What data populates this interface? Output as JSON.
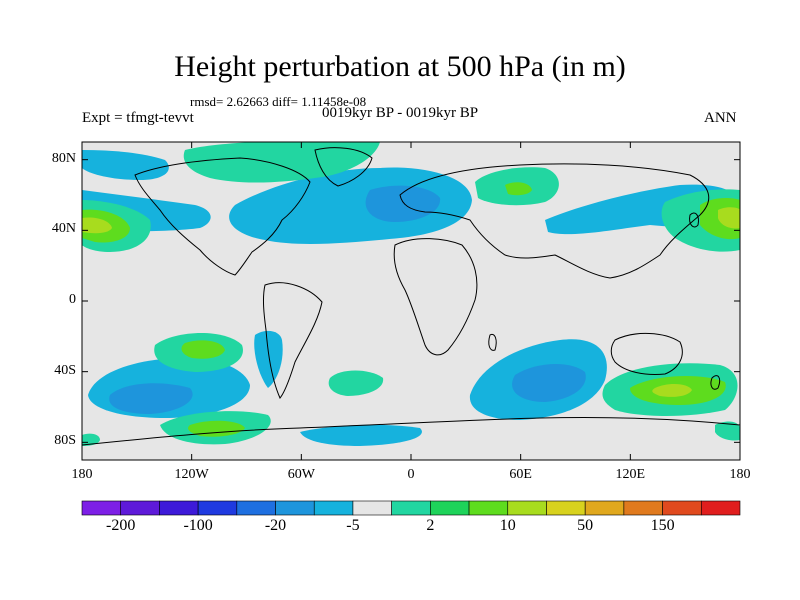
{
  "title": "Height perturbation at 500 hPa (in m)",
  "stats": "rmsd= 2.62663 diff= 1.11458e-08",
  "experiment": "Expt = tfmgt-tevvt",
  "period": "0019kyr BP - 0019kyr BP",
  "season": "ANN",
  "axes": {
    "y_ticks": [
      {
        "lat": 80,
        "label": "80N"
      },
      {
        "lat": 40,
        "label": "40N"
      },
      {
        "lat": 0,
        "label": "0"
      },
      {
        "lat": -40,
        "label": "40S"
      },
      {
        "lat": -80,
        "label": "80S"
      }
    ],
    "x_ticks": [
      {
        "lon": -180,
        "label": "180"
      },
      {
        "lon": -120,
        "label": "120W"
      },
      {
        "lon": -60,
        "label": "60W"
      },
      {
        "lon": 0,
        "label": "0"
      },
      {
        "lon": 60,
        "label": "60E"
      },
      {
        "lon": 120,
        "label": "120E"
      },
      {
        "lon": 180,
        "label": "180"
      }
    ]
  },
  "colorbar": {
    "colors": [
      "#7d1fe6",
      "#5e1ad9",
      "#3d1ad9",
      "#1f3ae0",
      "#1e6fe0",
      "#1e95dc",
      "#16b2dd",
      "#e6e6e6",
      "#22d6a1",
      "#1ed35a",
      "#5edc1e",
      "#a8dc1e",
      "#d8d21e",
      "#e0a81e",
      "#e07a1e",
      "#e04a1e",
      "#e01e1e"
    ],
    "labels": [
      {
        "after_box": 1,
        "text": "-200"
      },
      {
        "after_box": 3,
        "text": "-100"
      },
      {
        "after_box": 5,
        "text": "-20"
      },
      {
        "after_box": 7,
        "text": "-5"
      },
      {
        "after_box": 9,
        "text": "2"
      },
      {
        "after_box": 11,
        "text": "10"
      },
      {
        "after_box": 13,
        "text": "50"
      },
      {
        "after_box": 15,
        "text": "150"
      }
    ]
  },
  "map_field": {
    "negative_lt_-5": [
      {
        "region": "North Atlantic / Europe trough",
        "lon": -5,
        "lat": 45
      },
      {
        "region": "North Pacific trough",
        "lon": 140,
        "lat": 60
      },
      {
        "region": "Southern Ocean south of Africa",
        "lon": 80,
        "lat": -45
      },
      {
        "region": "South Pacific",
        "lon": -130,
        "lat": -55
      },
      {
        "region": "Antarctic coast Atlantic sector",
        "lon": -20,
        "lat": -75
      }
    ],
    "positive_2_10": [
      {
        "region": "Arctic Canada",
        "lon": -90,
        "lat": 75
      },
      {
        "region": "Siberia",
        "lon": 60,
        "lat": 60
      },
      {
        "region": "North Pacific date line",
        "lon": 175,
        "lat": 40
      },
      {
        "region": "South Pacific",
        "lon": -135,
        "lat": -30
      },
      {
        "region": "South Atlantic",
        "lon": -15,
        "lat": -45
      },
      {
        "region": "Southwest Pacific",
        "lon": 140,
        "lat": -52
      },
      {
        "region": "Antarctica Pacific sector",
        "lon": -120,
        "lat": -75
      }
    ],
    "positive_10_50": [
      {
        "region": "North Pacific date line",
        "lon": 180,
        "lat": 40
      },
      {
        "region": "Southwest Pacific",
        "lon": 145,
        "lat": -52
      }
    ]
  }
}
